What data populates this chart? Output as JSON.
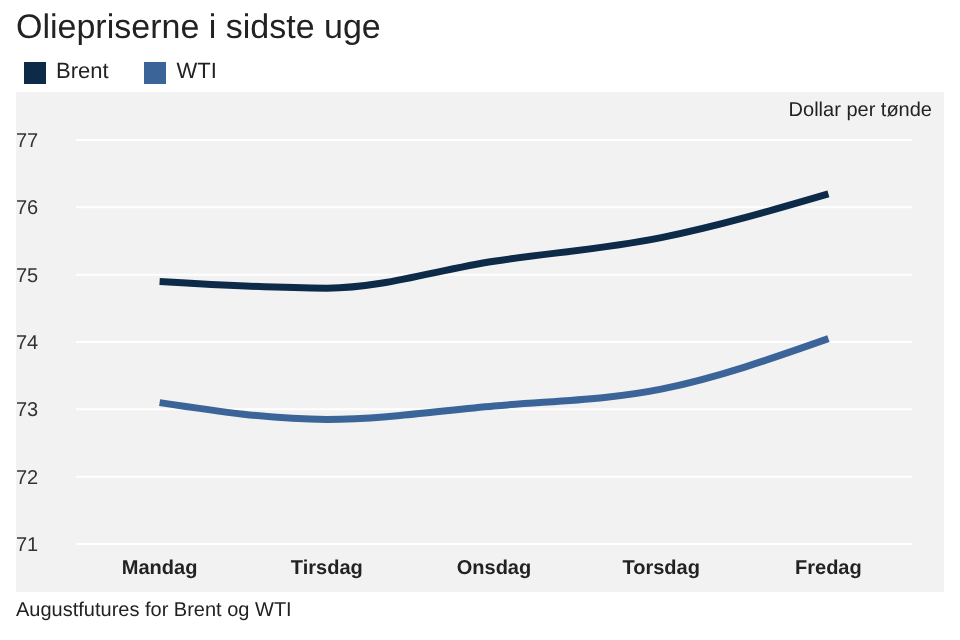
{
  "chart_data": {
    "type": "line",
    "title": "Oliepriserne i sidste uge",
    "ylabel": "Dollar per tønde",
    "annotations": [
      "Augustfutures for Brent og WTI"
    ],
    "categories": [
      "Mandag",
      "Tirsdag",
      "Onsdag",
      "Torsdag",
      "Fredag"
    ],
    "series": [
      {
        "name": "Brent",
        "color": "#0d2a48",
        "values": [
          74.9,
          74.8,
          75.2,
          75.55,
          76.2
        ]
      },
      {
        "name": "WTI",
        "color": "#3b6499",
        "values": [
          73.1,
          72.85,
          73.05,
          73.3,
          74.05
        ]
      }
    ],
    "ylim": [
      71,
      77
    ],
    "yticks": [
      71,
      72,
      73,
      74,
      75,
      76,
      77
    ],
    "grid": "y",
    "legend": "top left",
    "marker": "none",
    "line_style": "solid"
  }
}
